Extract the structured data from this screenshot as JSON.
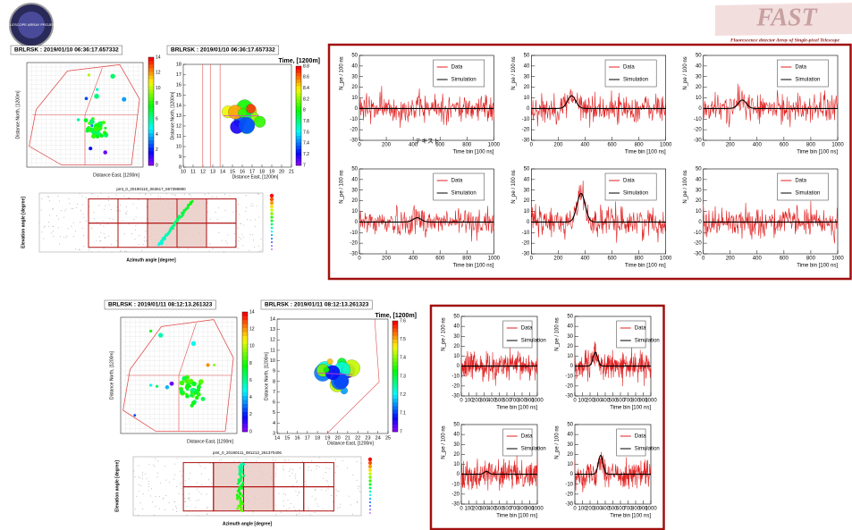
{
  "logos": {
    "left": "TELESCOPE ARRAY PROJECT",
    "right_title": "FAST",
    "right_subtitle": "Fluorescence detector Array of Single-pixel Telescope"
  },
  "annotation": "テキスト",
  "events": [
    {
      "event_map": {
        "title": "BRLRSK : 2019/01/10 06:36:17.657332",
        "y_label": "Distance North, [1200m]",
        "x_label": "Distance East, [1200m]",
        "scale_ticks": [
          "0",
          "2",
          "4",
          "6",
          "8",
          "10",
          "12",
          "14"
        ]
      },
      "zoom_map": {
        "title": "BRLRSK : 2019/01/10 06:36:17.657332",
        "time_label": "Time, [1200m]",
        "y_label": "Distance North, [1200m]",
        "x_label": "Distance East, [1200m]",
        "x_ticks": [
          "10",
          "11",
          "12",
          "13",
          "14",
          "15",
          "16",
          "17",
          "18",
          "19",
          "20",
          "21"
        ],
        "y_ticks": [
          "8",
          "9",
          "10",
          "11",
          "12",
          "13",
          "14",
          "15",
          "16",
          "17",
          "18"
        ],
        "scale_ticks": [
          "7",
          "7.2",
          "7.4",
          "7.6",
          "7.8",
          "8",
          "8.2",
          "8.4",
          "8.6",
          "8.8"
        ]
      },
      "pmt": {
        "title": "pmt_0_20190110_063617_657398890",
        "x_label": "Azimuth angle [degree]",
        "y_label": "Elevation angle [degree]"
      },
      "traces": {
        "y_label": "N_pe / 100 ns",
        "x_label": "Time bin [100 ns]",
        "legend": [
          "Data",
          "Simulation"
        ],
        "xticks": [
          "0",
          "200",
          "400",
          "600",
          "800",
          "1000"
        ],
        "yticks": [
          "-30",
          "-20",
          "-10",
          "0",
          "10",
          "20",
          "30",
          "40",
          "50"
        ]
      }
    },
    {
      "event_map": {
        "title": "BRLRSK : 2019/01/11 08:12:13.261323",
        "y_label": "Distance North, [1200m]",
        "x_label": "Distance East, [1200m]",
        "scale_ticks": [
          "0",
          "2",
          "4",
          "6",
          "8",
          "10",
          "12",
          "14"
        ]
      },
      "zoom_map": {
        "title": "BRLRSK : 2019/01/11 08:12:13.261323",
        "time_label": "Time, [1200m]",
        "y_label": "Distance North, [1200m]",
        "x_label": "Distance East, [1200m]",
        "x_ticks": [
          "14",
          "15",
          "16",
          "17",
          "18",
          "19",
          "20",
          "21",
          "22",
          "23",
          "24",
          "25"
        ],
        "y_ticks": [
          "3",
          "4",
          "5",
          "6",
          "7",
          "8",
          "9",
          "10",
          "11",
          "12",
          "13",
          "14"
        ],
        "scale_ticks": [
          "7",
          "7.1",
          "7.2",
          "7.3",
          "7.4",
          "7.5",
          "7.6"
        ]
      },
      "pmt": {
        "title": "pmt_0_20190111_081213_261370406",
        "x_label": "Azimuth angle [degree]",
        "y_label": "Elevation angle [degree]"
      },
      "traces": {
        "y_label": "N_pe / 100 ns",
        "x_label": "Time bin [100 ns]",
        "legend": [
          "Data",
          "Simulation"
        ],
        "xticks": [
          "0",
          "100",
          "200",
          "300",
          "400",
          "500",
          "600",
          "700",
          "800",
          "900",
          "1000"
        ],
        "yticks": [
          "-30",
          "-20",
          "-10",
          "0",
          "10",
          "20",
          "30",
          "40",
          "50"
        ]
      }
    }
  ]
}
